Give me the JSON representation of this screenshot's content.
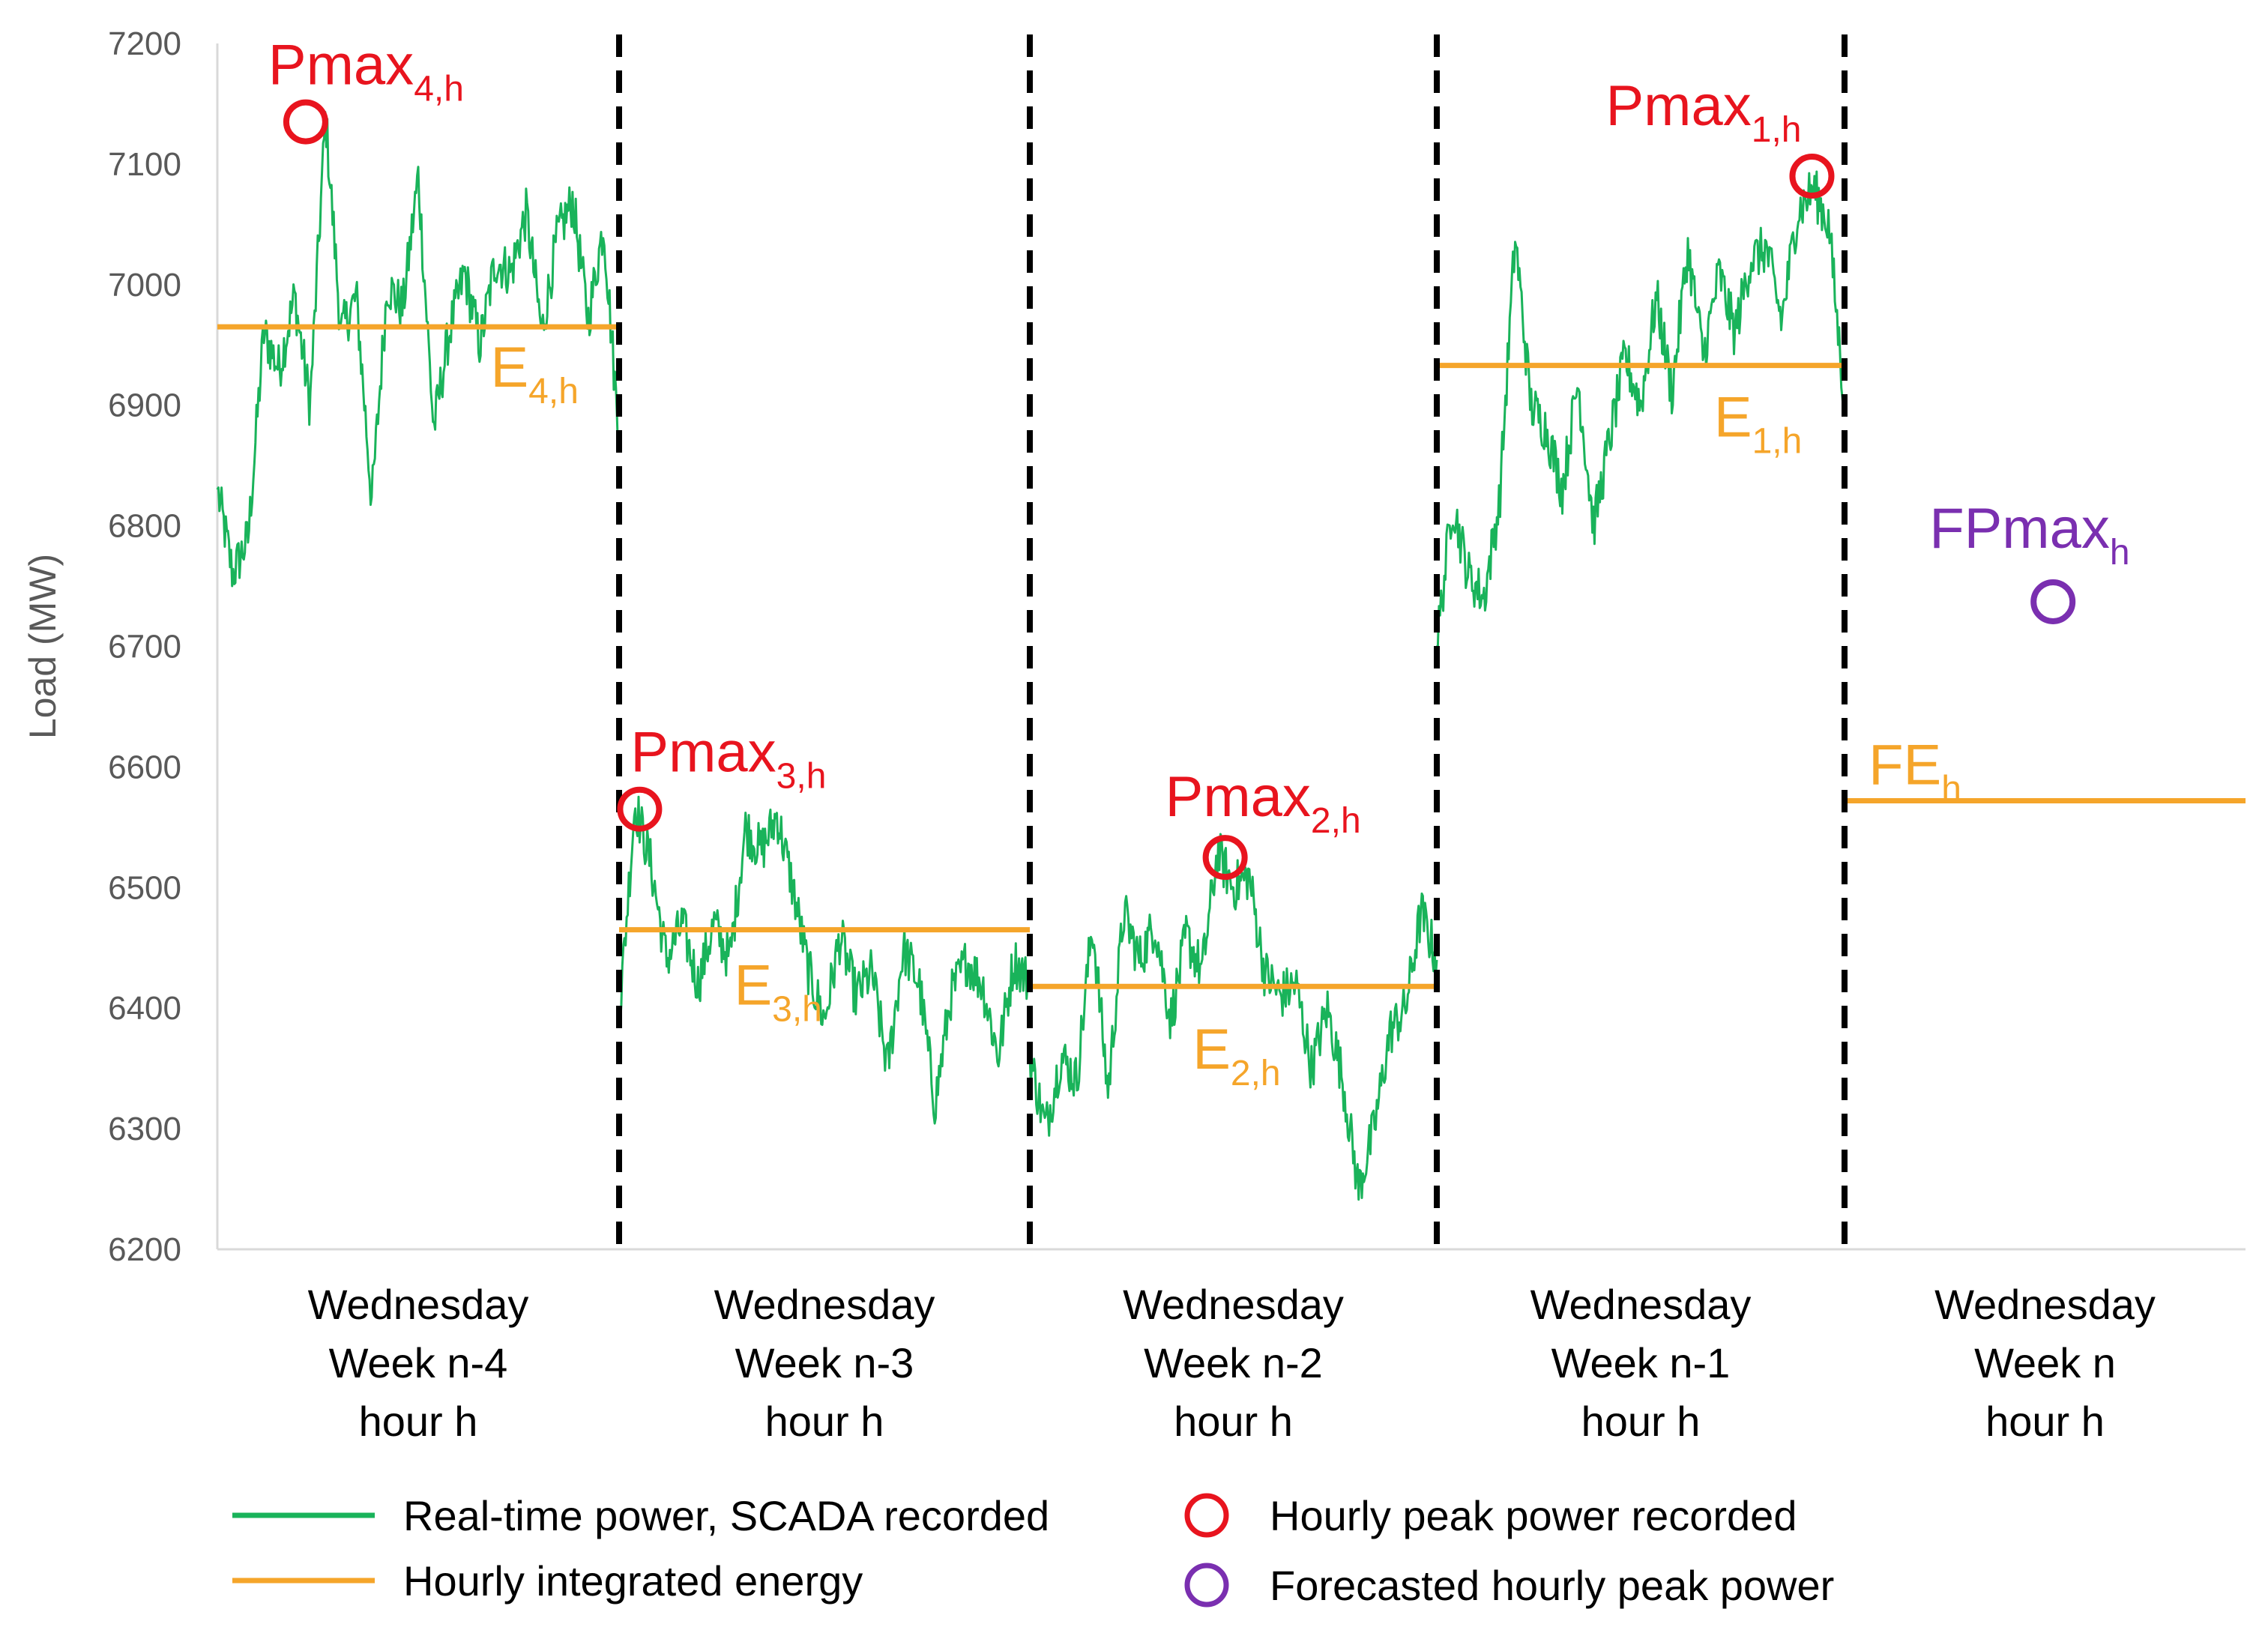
{
  "chart_data": {
    "type": "line",
    "ylabel": "Load (MW)",
    "ylim": [
      6200,
      7200
    ],
    "yticks": [
      6200,
      6300,
      6400,
      6500,
      6600,
      6700,
      6800,
      6900,
      7000,
      7100,
      7200
    ],
    "grid": false,
    "categories": [
      {
        "lines": [
          "Wednesday",
          "Week n-4",
          "hour h"
        ]
      },
      {
        "lines": [
          "Wednesday",
          "Week n-3",
          "hour h"
        ]
      },
      {
        "lines": [
          "Wednesday",
          "Week n-2",
          "hour h"
        ]
      },
      {
        "lines": [
          "Wednesday",
          "Week n-1",
          "hour h"
        ]
      },
      {
        "lines": [
          "Wednesday",
          "Week n",
          "hour h"
        ]
      }
    ],
    "colors": {
      "realtime": "#19b35a",
      "energy": "#f5a52a",
      "peak": "#e8141e",
      "forecast": "#7a2fb0",
      "divider": "#000000"
    },
    "series": [
      {
        "name": "Real-time power, SCADA recorded",
        "segments": [
          {
            "hour": 0,
            "trace": [
              6830,
              6760,
              6790,
              6960,
              6930,
              6990,
              6900,
              7140,
              6960,
              6990,
              6820,
              7000,
              6980,
              7090,
              6880,
              6960,
              7010,
              6950,
              7020,
              7010,
              7060,
              6960,
              7040,
              7070,
              6970,
              7050,
              6870
            ]
          },
          {
            "hour": 1,
            "trace": [
              6390,
              6570,
              6520,
              6440,
              6470,
              6420,
              6470,
              6440,
              6550,
              6530,
              6560,
              6500,
              6430,
              6390,
              6460,
              6410,
              6430,
              6350,
              6450,
              6420,
              6320,
              6410,
              6440,
              6420,
              6360,
              6440,
              6420
            ]
          },
          {
            "hour": 2,
            "trace": [
              6360,
              6300,
              6360,
              6340,
              6470,
              6330,
              6480,
              6440,
              6470,
              6390,
              6460,
              6430,
              6530,
              6500,
              6510,
              6430,
              6410,
              6420,
              6350,
              6400,
              6340,
              6250,
              6300,
              6380,
              6400,
              6480,
              6440
            ]
          },
          {
            "hour": 3,
            "trace": [
              6700,
              6820,
              6760,
              6740,
              6820,
              7040,
              6900,
              6880,
              6830,
              6920,
              6800,
              6870,
              6940,
              6900,
              6990,
              6910,
              7030,
              6940,
              7010,
              6960,
              7020,
              7030,
              6970,
              7060,
              7080,
              7050,
              6900
            ]
          }
        ]
      },
      {
        "name": "Hourly integrated energy",
        "hourly": [
          {
            "hour": 0,
            "label": "E",
            "sub": "4,h",
            "value": 6965
          },
          {
            "hour": 1,
            "label": "E",
            "sub": "3,h",
            "value": 6465
          },
          {
            "hour": 2,
            "label": "E",
            "sub": "2,h",
            "value": 6418
          },
          {
            "hour": 3,
            "label": "E",
            "sub": "1,h",
            "value": 6933
          },
          {
            "hour": 4,
            "label": "FE",
            "sub": "h",
            "value": 6572
          }
        ]
      }
    ],
    "peaks": [
      {
        "hour": 0,
        "label": "Pmax",
        "sub": "4,h",
        "x": 0.22,
        "value": 7135
      },
      {
        "hour": 1,
        "label": "Pmax",
        "sub": "3,h",
        "x": 0.05,
        "value": 6565
      },
      {
        "hour": 2,
        "label": "Pmax",
        "sub": "2,h",
        "x": 0.48,
        "value": 6525
      },
      {
        "hour": 3,
        "label": "Pmax",
        "sub": "1,h",
        "x": 0.92,
        "value": 7090
      }
    ],
    "forecast_peak": {
      "hour": 4,
      "label": "FPmax",
      "sub": "h",
      "x": 0.52,
      "value": 6737
    },
    "legend": {
      "items": [
        {
          "label": "Real-time power, SCADA recorded",
          "marker": "line",
          "color": "#19b35a"
        },
        {
          "label": "Hourly integrated energy",
          "marker": "line",
          "color": "#f5a52a"
        },
        {
          "label": "Hourly peak power recorded",
          "marker": "circle",
          "color": "#e8141e"
        },
        {
          "label": "Forecasted hourly peak power",
          "marker": "circle",
          "color": "#7a2fb0"
        }
      ],
      "position": "bottom"
    }
  }
}
